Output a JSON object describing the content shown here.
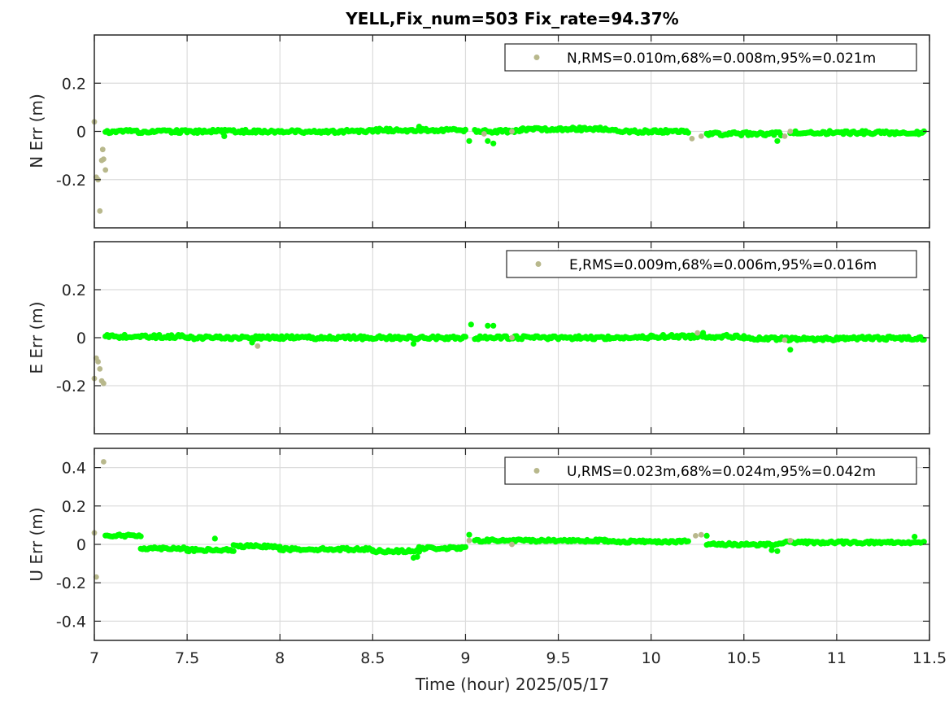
{
  "chart_data": [
    {
      "type": "scatter",
      "title": "YELL,Fix_num=503 Fix_rate=94.37%",
      "ylabel": "N Err (m)",
      "xlim": [
        7,
        11.5
      ],
      "ylim": [
        -0.4,
        0.4
      ],
      "yticks": [
        0.2,
        0,
        -0.2
      ],
      "ytick_labels": [
        "0.2",
        "0",
        "-0.2"
      ],
      "grid": true,
      "legend": {
        "label": "N,RMS=0.010m,68%=0.008m,95%=0.021m",
        "position": "top-right"
      },
      "colors": {
        "float": "#b8b88c",
        "fixed": "#00ff00"
      },
      "float_points": [
        [
          7.0,
          0.04
        ],
        [
          7.01,
          -0.19
        ],
        [
          7.02,
          -0.2
        ],
        [
          7.03,
          -0.33
        ],
        [
          7.04,
          -0.12
        ],
        [
          7.045,
          -0.075
        ],
        [
          7.05,
          -0.115
        ],
        [
          7.06,
          -0.16
        ],
        [
          9.1,
          -0.01
        ],
        [
          9.25,
          0.0
        ],
        [
          10.22,
          -0.03
        ],
        [
          10.27,
          -0.02
        ],
        [
          10.72,
          -0.02
        ],
        [
          10.75,
          0.0
        ]
      ],
      "fixed_segments": [
        [
          7.06,
          7.5,
          0.0
        ],
        [
          7.5,
          8.0,
          0.0
        ],
        [
          8.0,
          8.5,
          0.0
        ],
        [
          8.5,
          9.0,
          0.005
        ],
        [
          9.05,
          9.3,
          0.0
        ],
        [
          9.3,
          9.8,
          0.01
        ],
        [
          9.8,
          10.2,
          0.0
        ],
        [
          10.3,
          10.7,
          -0.01
        ],
        [
          10.75,
          11.47,
          -0.005
        ]
      ],
      "fixed_extras": [
        [
          7.7,
          -0.02
        ],
        [
          8.75,
          0.02
        ],
        [
          9.02,
          -0.04
        ],
        [
          9.12,
          -0.04
        ],
        [
          9.15,
          -0.05
        ],
        [
          10.68,
          -0.04
        ]
      ]
    },
    {
      "type": "scatter",
      "ylabel": "E Err (m)",
      "xlim": [
        7,
        11.5
      ],
      "ylim": [
        -0.4,
        0.4
      ],
      "yticks": [
        0.2,
        0,
        -0.2
      ],
      "ytick_labels": [
        "0.2",
        "0",
        "-0.2"
      ],
      "grid": true,
      "legend": {
        "label": "E,RMS=0.009m,68%=0.006m,95%=0.016m",
        "position": "top-right"
      },
      "colors": {
        "float": "#b8b88c",
        "fixed": "#00ff00"
      },
      "float_points": [
        [
          7.0,
          -0.17
        ],
        [
          7.01,
          -0.085
        ],
        [
          7.02,
          -0.1
        ],
        [
          7.03,
          -0.13
        ],
        [
          7.04,
          -0.18
        ],
        [
          7.05,
          -0.19
        ],
        [
          7.88,
          -0.035
        ],
        [
          9.25,
          0.0
        ],
        [
          10.25,
          0.02
        ],
        [
          10.72,
          -0.01
        ]
      ],
      "fixed_segments": [
        [
          7.06,
          7.5,
          0.005
        ],
        [
          7.5,
          8.0,
          0.0
        ],
        [
          8.0,
          8.5,
          0.0
        ],
        [
          8.5,
          9.0,
          0.0
        ],
        [
          9.05,
          9.5,
          0.0
        ],
        [
          9.5,
          10.0,
          0.0
        ],
        [
          10.0,
          10.5,
          0.005
        ],
        [
          10.5,
          11.0,
          -0.005
        ],
        [
          11.0,
          11.47,
          -0.002
        ]
      ],
      "fixed_extras": [
        [
          7.85,
          -0.02
        ],
        [
          8.72,
          -0.025
        ],
        [
          9.03,
          0.055
        ],
        [
          9.12,
          0.05
        ],
        [
          9.15,
          0.05
        ],
        [
          10.75,
          -0.05
        ],
        [
          10.28,
          0.02
        ]
      ]
    },
    {
      "type": "scatter",
      "ylabel": "U Err (m)",
      "xlabel": "Time (hour)  2025/05/17",
      "xlim": [
        7,
        11.5
      ],
      "ylim": [
        -0.5,
        0.5
      ],
      "yticks": [
        0.4,
        0.2,
        0,
        -0.2,
        -0.4
      ],
      "ytick_labels": [
        "0.4",
        "0.2",
        "0",
        "-0.2",
        "-0.4"
      ],
      "xticks": [
        7,
        7.5,
        8,
        8.5,
        9,
        9.5,
        10,
        10.5,
        11,
        11.5
      ],
      "xtick_labels": [
        "7",
        "7.5",
        "8",
        "8.5",
        "9",
        "9.5",
        "10",
        "10.5",
        "11",
        "11.5"
      ],
      "grid": true,
      "legend": {
        "label": "U,RMS=0.023m,68%=0.024m,95%=0.042m",
        "position": "top-right"
      },
      "colors": {
        "float": "#b8b88c",
        "fixed": "#00ff00"
      },
      "float_points": [
        [
          7.0,
          0.06
        ],
        [
          7.01,
          -0.17
        ],
        [
          7.05,
          0.43
        ],
        [
          9.02,
          0.02
        ],
        [
          9.25,
          0.0
        ],
        [
          10.24,
          0.045
        ],
        [
          10.27,
          0.05
        ],
        [
          10.75,
          0.02
        ]
      ],
      "fixed_segments": [
        [
          7.06,
          7.25,
          0.045
        ],
        [
          7.25,
          7.5,
          -0.02
        ],
        [
          7.5,
          7.75,
          -0.03
        ],
        [
          7.75,
          8.0,
          -0.01
        ],
        [
          8.0,
          8.5,
          -0.025
        ],
        [
          8.5,
          8.75,
          -0.035
        ],
        [
          8.75,
          9.0,
          -0.02
        ],
        [
          9.05,
          9.4,
          0.02
        ],
        [
          9.4,
          9.75,
          0.02
        ],
        [
          9.75,
          10.2,
          0.015
        ],
        [
          10.3,
          10.7,
          0.0
        ],
        [
          10.7,
          11.0,
          0.01
        ],
        [
          11.0,
          11.47,
          0.01
        ]
      ],
      "fixed_extras": [
        [
          7.65,
          0.03
        ],
        [
          8.72,
          -0.07
        ],
        [
          8.74,
          -0.065
        ],
        [
          9.02,
          0.05
        ],
        [
          10.3,
          0.045
        ],
        [
          10.65,
          -0.03
        ],
        [
          10.68,
          -0.035
        ],
        [
          11.42,
          0.04
        ]
      ]
    }
  ]
}
